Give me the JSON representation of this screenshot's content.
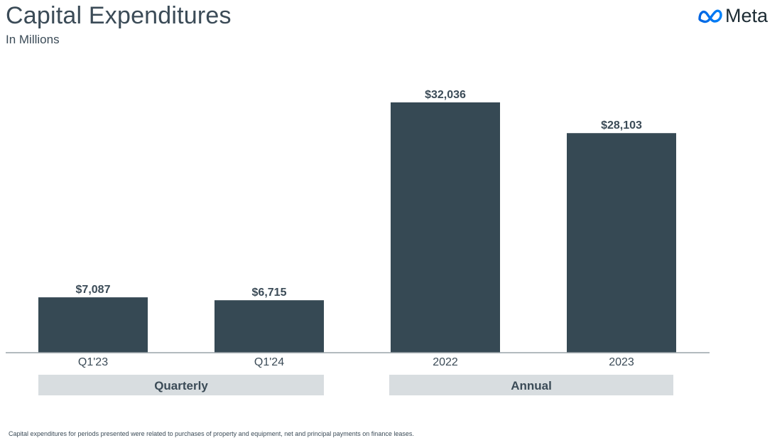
{
  "header": {
    "title": "Capital Expenditures",
    "subtitle": "In Millions",
    "logo_text": "Meta"
  },
  "colors": {
    "bar": "#364954",
    "group_band": "#d8dde0",
    "text": "#3b4b57",
    "baseline": "#9aa3a8",
    "logo_gradient_start": "#0064e0",
    "logo_gradient_end": "#0082fb"
  },
  "chart_data": {
    "type": "bar",
    "categories": [
      "Q1'23",
      "Q1'24",
      "2022",
      "2023"
    ],
    "values": [
      7087,
      6715,
      32036,
      28103
    ],
    "data_labels": [
      "$7,087",
      "$6,715",
      "$32,036",
      "$28,103"
    ],
    "groups": [
      {
        "label": "Quarterly",
        "categories": [
          "Q1'23",
          "Q1'24"
        ]
      },
      {
        "label": "Annual",
        "categories": [
          "2022",
          "2023"
        ]
      }
    ],
    "title": "Capital Expenditures",
    "ylabel": "In Millions",
    "ylim": [
      0,
      32036
    ]
  },
  "footnote": "Capital expenditures for periods presented were related to purchases of property and equipment, net and principal payments on finance leases."
}
